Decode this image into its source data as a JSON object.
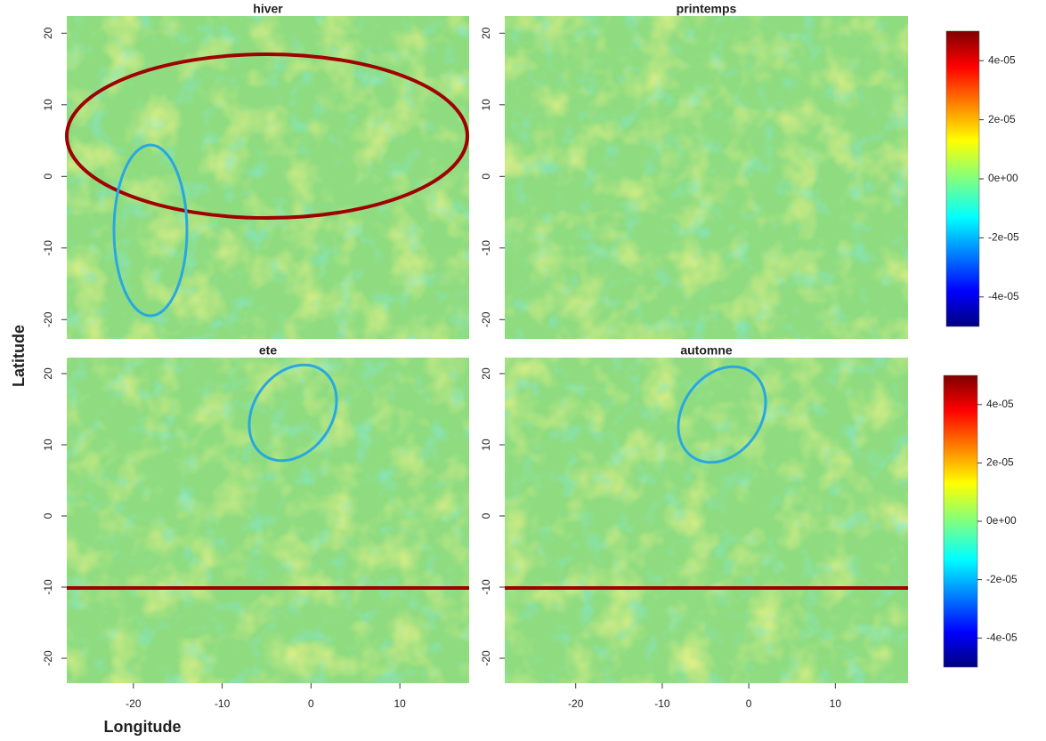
{
  "axis_labels": {
    "x": "Longitude",
    "y": "Latitude"
  },
  "chart_data": [
    {
      "type": "heatmap",
      "title": "hiver",
      "ylim": [
        -22.7,
        22.4
      ],
      "yticks": [
        -20,
        -10,
        0,
        10,
        20
      ]
    },
    {
      "type": "heatmap",
      "title": "printemps",
      "ylim": [
        -22.7,
        22.4
      ],
      "yticks": [
        -20,
        -10,
        0,
        10,
        20
      ]
    },
    {
      "type": "heatmap",
      "title": "ete",
      "xlim": [
        -27.5,
        17.8
      ],
      "xticks": [
        -20,
        -10,
        0,
        10
      ],
      "ylim": [
        -23.5,
        22.25
      ],
      "yticks": [
        -20,
        -10,
        0,
        10,
        20
      ]
    },
    {
      "type": "heatmap",
      "title": "automne",
      "xlim": [
        -28.2,
        18.4
      ],
      "xticks": [
        -20,
        -10,
        0,
        10
      ],
      "ylim": [
        -23.5,
        22.25
      ],
      "yticks": [
        -20,
        -10,
        0,
        10,
        20
      ]
    },
    {
      "type": "colorbar",
      "ylim": [
        -5e-05,
        5e-05
      ],
      "yticks": [
        {
          "value": -4e-05,
          "label": "-4e-05"
        },
        {
          "value": -2e-05,
          "label": "-2e-05"
        },
        {
          "value": 0,
          "label": "0e+00"
        },
        {
          "value": 2e-05,
          "label": "2e-05"
        },
        {
          "value": 4e-05,
          "label": "4e-05"
        }
      ]
    },
    {
      "type": "colorbar",
      "ylim": [
        -5e-05,
        5e-05
      ],
      "yticks": [
        {
          "value": -4e-05,
          "label": "-4e-05"
        },
        {
          "value": -2e-05,
          "label": "-2e-05"
        },
        {
          "value": 0,
          "label": "0e+00"
        },
        {
          "value": 2e-05,
          "label": "2e-05"
        },
        {
          "value": 4e-05,
          "label": "4e-05"
        }
      ]
    }
  ]
}
